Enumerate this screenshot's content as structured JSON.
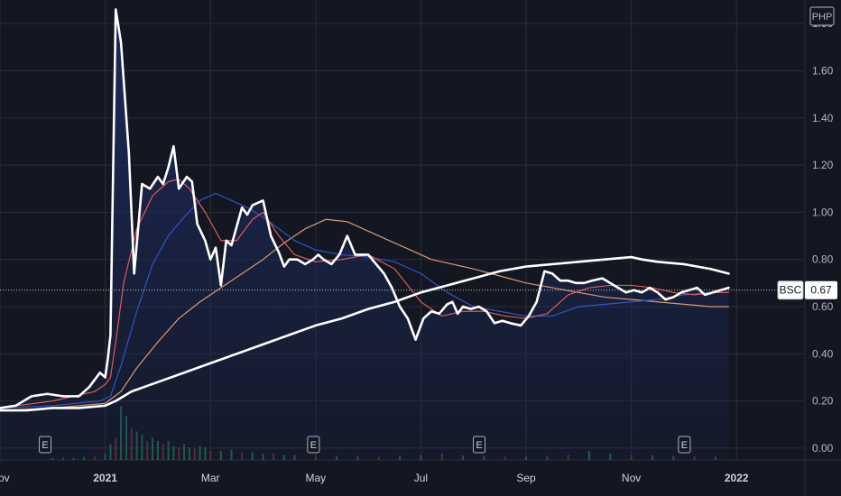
{
  "chart_data": {
    "type": "line",
    "currency_label": "PHP",
    "symbol": "BSC",
    "last_price": "0.67",
    "last_value": 0.67,
    "ylim": [
      -0.05,
      1.9
    ],
    "y_ticks": [
      "1.80",
      "1.60",
      "1.40",
      "1.20",
      "1.00",
      "0.80",
      "0.60",
      "0.40",
      "0.20",
      "0.00"
    ],
    "y_tick_values": [
      1.8,
      1.6,
      1.4,
      1.2,
      1.0,
      0.8,
      0.6,
      0.4,
      0.2,
      0.0
    ],
    "x_ticks": [
      "Nov",
      "2021",
      "Mar",
      "May",
      "Jul",
      "Sep",
      "Nov",
      "2022"
    ],
    "x_tick_months": [
      0,
      2,
      4,
      6,
      8,
      10,
      12,
      14
    ],
    "event_marker_label": "E",
    "event_months": [
      0.85,
      5.95,
      9.1,
      13.0
    ],
    "colors": {
      "background": "#131722",
      "grid": "#2a2e39",
      "price": "#ffffff",
      "area_top": "#1e2a5c",
      "ma_red": "#e05a5a",
      "ma_blue": "#2e55c9",
      "ma_orange": "#d99a6c",
      "ma_white": "#ffffff",
      "vol_up": "#1f6e5a",
      "vol_down": "#7a2e33"
    },
    "series": [
      {
        "key": "price",
        "x": [
          0,
          0.3,
          0.6,
          0.9,
          1.2,
          1.5,
          1.7,
          1.8,
          1.9,
          2.0,
          2.05,
          2.1,
          2.2,
          2.3,
          2.45,
          2.55,
          2.7,
          2.85,
          3.0,
          3.1,
          3.2,
          3.3,
          3.4,
          3.55,
          3.65,
          3.75,
          3.9,
          4.0,
          4.1,
          4.2,
          4.3,
          4.4,
          4.5,
          4.6,
          4.7,
          4.8,
          4.9,
          5.0,
          5.15,
          5.3,
          5.4,
          5.5,
          5.65,
          5.8,
          5.95,
          6.05,
          6.15,
          6.3,
          6.45,
          6.6,
          6.75,
          6.9,
          7.0,
          7.15,
          7.3,
          7.45,
          7.6,
          7.75,
          7.9,
          8.05,
          8.2,
          8.35,
          8.5,
          8.6,
          8.7,
          8.8,
          8.95,
          9.1,
          9.25,
          9.4,
          9.55,
          9.7,
          9.9,
          10.05,
          10.2,
          10.35,
          10.5,
          10.65,
          10.8,
          10.95,
          11.1,
          11.25,
          11.45,
          11.6,
          11.75,
          11.9,
          12.05,
          12.2,
          12.35,
          12.5,
          12.65,
          12.8,
          12.95,
          13.1,
          13.25,
          13.4,
          13.55,
          13.7,
          13.85
        ],
        "values": [
          0.17,
          0.18,
          0.22,
          0.23,
          0.22,
          0.22,
          0.26,
          0.29,
          0.32,
          0.3,
          0.38,
          0.48,
          1.86,
          1.72,
          1.25,
          0.74,
          1.12,
          1.1,
          1.15,
          1.12,
          1.19,
          1.28,
          1.1,
          1.15,
          1.13,
          0.95,
          0.88,
          0.8,
          0.85,
          0.69,
          0.88,
          0.86,
          0.94,
          1.02,
          0.99,
          1.03,
          1.04,
          1.05,
          0.9,
          0.83,
          0.77,
          0.8,
          0.8,
          0.78,
          0.8,
          0.82,
          0.8,
          0.78,
          0.82,
          0.9,
          0.82,
          0.82,
          0.82,
          0.78,
          0.74,
          0.68,
          0.6,
          0.55,
          0.46,
          0.55,
          0.58,
          0.57,
          0.61,
          0.62,
          0.57,
          0.6,
          0.59,
          0.6,
          0.58,
          0.53,
          0.54,
          0.53,
          0.52,
          0.56,
          0.62,
          0.75,
          0.74,
          0.71,
          0.71,
          0.7,
          0.7,
          0.71,
          0.72,
          0.7,
          0.68,
          0.66,
          0.67,
          0.66,
          0.68,
          0.66,
          0.63,
          0.64,
          0.66,
          0.67,
          0.68,
          0.65,
          0.66,
          0.67,
          0.68
        ]
      },
      {
        "key": "ma_red",
        "x": [
          0,
          1.0,
          1.8,
          2.0,
          2.1,
          2.2,
          2.35,
          2.6,
          2.9,
          3.2,
          3.4,
          3.6,
          3.9,
          4.2,
          4.5,
          4.8,
          5.0,
          5.3,
          5.6,
          6.0,
          6.5,
          7.0,
          7.5,
          8.0,
          8.4,
          8.8,
          9.2,
          9.6,
          10.0,
          10.4,
          10.8,
          11.2,
          11.6,
          12.0,
          12.4,
          12.8,
          13.2,
          13.6,
          13.85
        ],
        "values": [
          0.17,
          0.2,
          0.24,
          0.27,
          0.3,
          0.45,
          0.7,
          0.93,
          1.07,
          1.13,
          1.14,
          1.1,
          1.0,
          0.88,
          0.88,
          0.97,
          1.0,
          0.9,
          0.82,
          0.79,
          0.8,
          0.82,
          0.76,
          0.62,
          0.56,
          0.58,
          0.58,
          0.56,
          0.55,
          0.57,
          0.65,
          0.68,
          0.69,
          0.69,
          0.68,
          0.66,
          0.65,
          0.66,
          0.66
        ]
      },
      {
        "key": "ma_blue",
        "x": [
          0,
          1.0,
          1.9,
          2.1,
          2.3,
          2.6,
          2.9,
          3.2,
          3.5,
          3.8,
          4.1,
          4.4,
          4.7,
          5.0,
          5.3,
          5.6,
          6.0,
          6.5,
          7.0,
          7.5,
          8.0,
          8.5,
          9.0,
          9.5,
          10.0,
          10.5,
          11.0,
          11.5,
          12.0,
          12.5,
          13.0,
          13.5,
          13.85
        ],
        "values": [
          0.17,
          0.18,
          0.2,
          0.22,
          0.35,
          0.58,
          0.78,
          0.9,
          0.98,
          1.05,
          1.08,
          1.05,
          1.02,
          0.98,
          0.93,
          0.88,
          0.84,
          0.82,
          0.81,
          0.79,
          0.74,
          0.66,
          0.6,
          0.58,
          0.56,
          0.56,
          0.6,
          0.61,
          0.62,
          0.63,
          0.65,
          0.66,
          0.66
        ]
      },
      {
        "key": "ma_orange",
        "x": [
          0,
          1.0,
          2.0,
          2.3,
          2.6,
          3.0,
          3.4,
          3.8,
          4.2,
          4.6,
          5.0,
          5.4,
          5.8,
          6.2,
          6.6,
          7.0,
          7.4,
          7.8,
          8.2,
          8.6,
          9.0,
          9.5,
          10.0,
          10.5,
          11.0,
          11.5,
          12.0,
          12.5,
          13.0,
          13.5,
          13.85
        ],
        "values": [
          0.16,
          0.17,
          0.19,
          0.24,
          0.34,
          0.45,
          0.55,
          0.62,
          0.68,
          0.74,
          0.8,
          0.87,
          0.93,
          0.97,
          0.96,
          0.92,
          0.88,
          0.84,
          0.8,
          0.78,
          0.76,
          0.73,
          0.7,
          0.68,
          0.66,
          0.64,
          0.63,
          0.62,
          0.61,
          0.6,
          0.6
        ]
      },
      {
        "key": "ma_white",
        "x": [
          0,
          0.5,
          1.0,
          1.5,
          2.0,
          2.2,
          2.5,
          3.0,
          3.5,
          4.0,
          4.5,
          5.0,
          5.5,
          6.0,
          6.5,
          7.0,
          7.5,
          8.0,
          8.5,
          9.0,
          9.5,
          10.0,
          10.5,
          11.0,
          11.5,
          12.0,
          12.2,
          12.5,
          13.0,
          13.5,
          13.85
        ],
        "values": [
          0.16,
          0.16,
          0.17,
          0.17,
          0.18,
          0.2,
          0.24,
          0.28,
          0.32,
          0.36,
          0.4,
          0.44,
          0.48,
          0.52,
          0.55,
          0.59,
          0.62,
          0.66,
          0.69,
          0.72,
          0.75,
          0.77,
          0.78,
          0.79,
          0.8,
          0.81,
          0.8,
          0.79,
          0.78,
          0.76,
          0.74
        ]
      }
    ],
    "volume": {
      "x": [
        1.0,
        1.2,
        1.4,
        1.6,
        1.8,
        2.0,
        2.1,
        2.2,
        2.3,
        2.4,
        2.5,
        2.6,
        2.7,
        2.8,
        2.9,
        3.0,
        3.1,
        3.2,
        3.3,
        3.4,
        3.5,
        3.6,
        3.7,
        3.8,
        3.9,
        4.0,
        4.2,
        4.4,
        4.6,
        4.8,
        5.0,
        5.2,
        5.4,
        5.6,
        6.0,
        6.4,
        6.8,
        7.2,
        7.6,
        8.0,
        8.4,
        8.8,
        9.2,
        9.6,
        10.0,
        10.4,
        10.8,
        11.2,
        11.6,
        12.0,
        12.4,
        12.8,
        13.2,
        13.6
      ],
      "values": [
        0.03,
        0.04,
        0.03,
        0.05,
        0.06,
        0.1,
        0.25,
        0.35,
        0.85,
        0.7,
        0.5,
        0.45,
        0.4,
        0.3,
        0.35,
        0.3,
        0.25,
        0.3,
        0.22,
        0.2,
        0.25,
        0.2,
        0.18,
        0.22,
        0.2,
        0.15,
        0.14,
        0.16,
        0.12,
        0.12,
        0.1,
        0.1,
        0.08,
        0.08,
        0.07,
        0.06,
        0.06,
        0.05,
        0.06,
        0.08,
        0.1,
        0.07,
        0.06,
        0.05,
        0.05,
        0.06,
        0.08,
        0.14,
        0.1,
        0.08,
        0.07,
        0.06,
        0.06,
        0.05
      ]
    }
  }
}
